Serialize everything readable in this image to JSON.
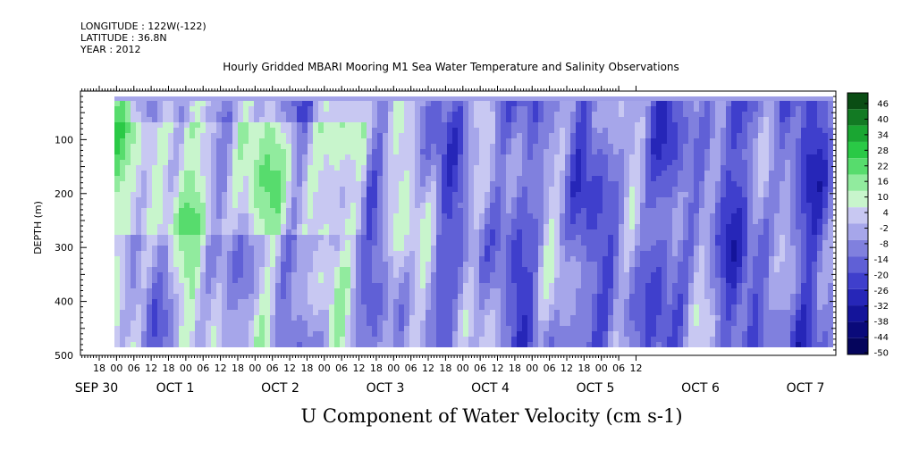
{
  "header": {
    "longitude": "LONGITUDE : 122W(-122)",
    "latitude": "LATITUDE : 36.8N",
    "year": "YEAR : 2012"
  },
  "chart_data": {
    "type": "heatmap",
    "title": "Hourly Gridded MBARI Mooring M1 Sea Water Temperature and Salinity Observations",
    "xlabel": "U Component of Water Velocity (cm s-1)",
    "ylabel": "DEPTH (m)",
    "y_range": [
      500,
      10
    ],
    "y_ticks": [
      100,
      200,
      300,
      400,
      500
    ],
    "data_y_range": [
      20,
      485
    ],
    "x_hour_ticks": [
      "18",
      "00",
      "06",
      "12",
      "18",
      "00",
      "06",
      "12",
      "18",
      "00",
      "06",
      "12",
      "18",
      "00",
      "06",
      "12",
      "18",
      "00",
      "06",
      "12",
      "18",
      "00",
      "06",
      "12",
      "18",
      "00",
      "06",
      "12",
      "18",
      "00",
      "06",
      "12"
    ],
    "x_day_labels": [
      "SEP 30",
      "OCT  1",
      "OCT  2",
      "OCT  3",
      "OCT  4",
      "OCT  5",
      "OCT  6",
      "OCT  7"
    ],
    "colorbar": {
      "labels": [
        "46",
        "40",
        "34",
        "28",
        "22",
        "16",
        "10",
        "4",
        "-2",
        "-8",
        "-14",
        "-20",
        "-26",
        "-32",
        "-38",
        "-44",
        "-50"
      ],
      "range": [
        -50,
        50
      ],
      "colors": [
        "#0a4d14",
        "#127a23",
        "#1aa632",
        "#2ac946",
        "#57dc6d",
        "#91eb9e",
        "#c8f5cc",
        "#c8c8f2",
        "#a6a6ea",
        "#8080de",
        "#6060d6",
        "#3f3fcc",
        "#2626b8",
        "#14149a",
        "#0a0a7a",
        "#05055c"
      ]
    },
    "description_pattern": "alternating vertical bands of eastward (green, +10 to +22) and westward (blue, -10 to -30) flow over depth 20-485 m, Sep 30 18:00 to Oct 7 12:00"
  }
}
